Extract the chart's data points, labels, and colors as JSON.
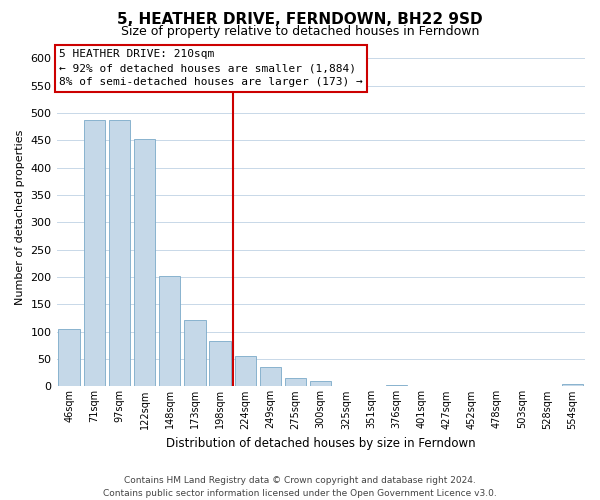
{
  "title": "5, HEATHER DRIVE, FERNDOWN, BH22 9SD",
  "subtitle": "Size of property relative to detached houses in Ferndown",
  "xlabel": "Distribution of detached houses by size in Ferndown",
  "ylabel": "Number of detached properties",
  "bar_labels": [
    "46sqm",
    "71sqm",
    "97sqm",
    "122sqm",
    "148sqm",
    "173sqm",
    "198sqm",
    "224sqm",
    "249sqm",
    "275sqm",
    "300sqm",
    "325sqm",
    "351sqm",
    "376sqm",
    "401sqm",
    "427sqm",
    "452sqm",
    "478sqm",
    "503sqm",
    "528sqm",
    "554sqm"
  ],
  "bar_heights": [
    105,
    488,
    488,
    452,
    202,
    122,
    83,
    56,
    36,
    16,
    10,
    0,
    0,
    2,
    0,
    0,
    0,
    0,
    0,
    0,
    5
  ],
  "bar_color": "#c5d8e8",
  "bar_edge_color": "#7baac8",
  "vline_color": "#cc0000",
  "annotation_title": "5 HEATHER DRIVE: 210sqm",
  "annotation_line1": "← 92% of detached houses are smaller (1,884)",
  "annotation_line2": "8% of semi-detached houses are larger (173) →",
  "annotation_box_color": "#ffffff",
  "annotation_border_color": "#cc0000",
  "ylim": [
    0,
    620
  ],
  "yticks": [
    0,
    50,
    100,
    150,
    200,
    250,
    300,
    350,
    400,
    450,
    500,
    550,
    600
  ],
  "footer1": "Contains HM Land Registry data © Crown copyright and database right 2024.",
  "footer2": "Contains public sector information licensed under the Open Government Licence v3.0.",
  "background_color": "#ffffff",
  "grid_color": "#c8d8e8",
  "title_fontsize": 11,
  "subtitle_fontsize": 9
}
